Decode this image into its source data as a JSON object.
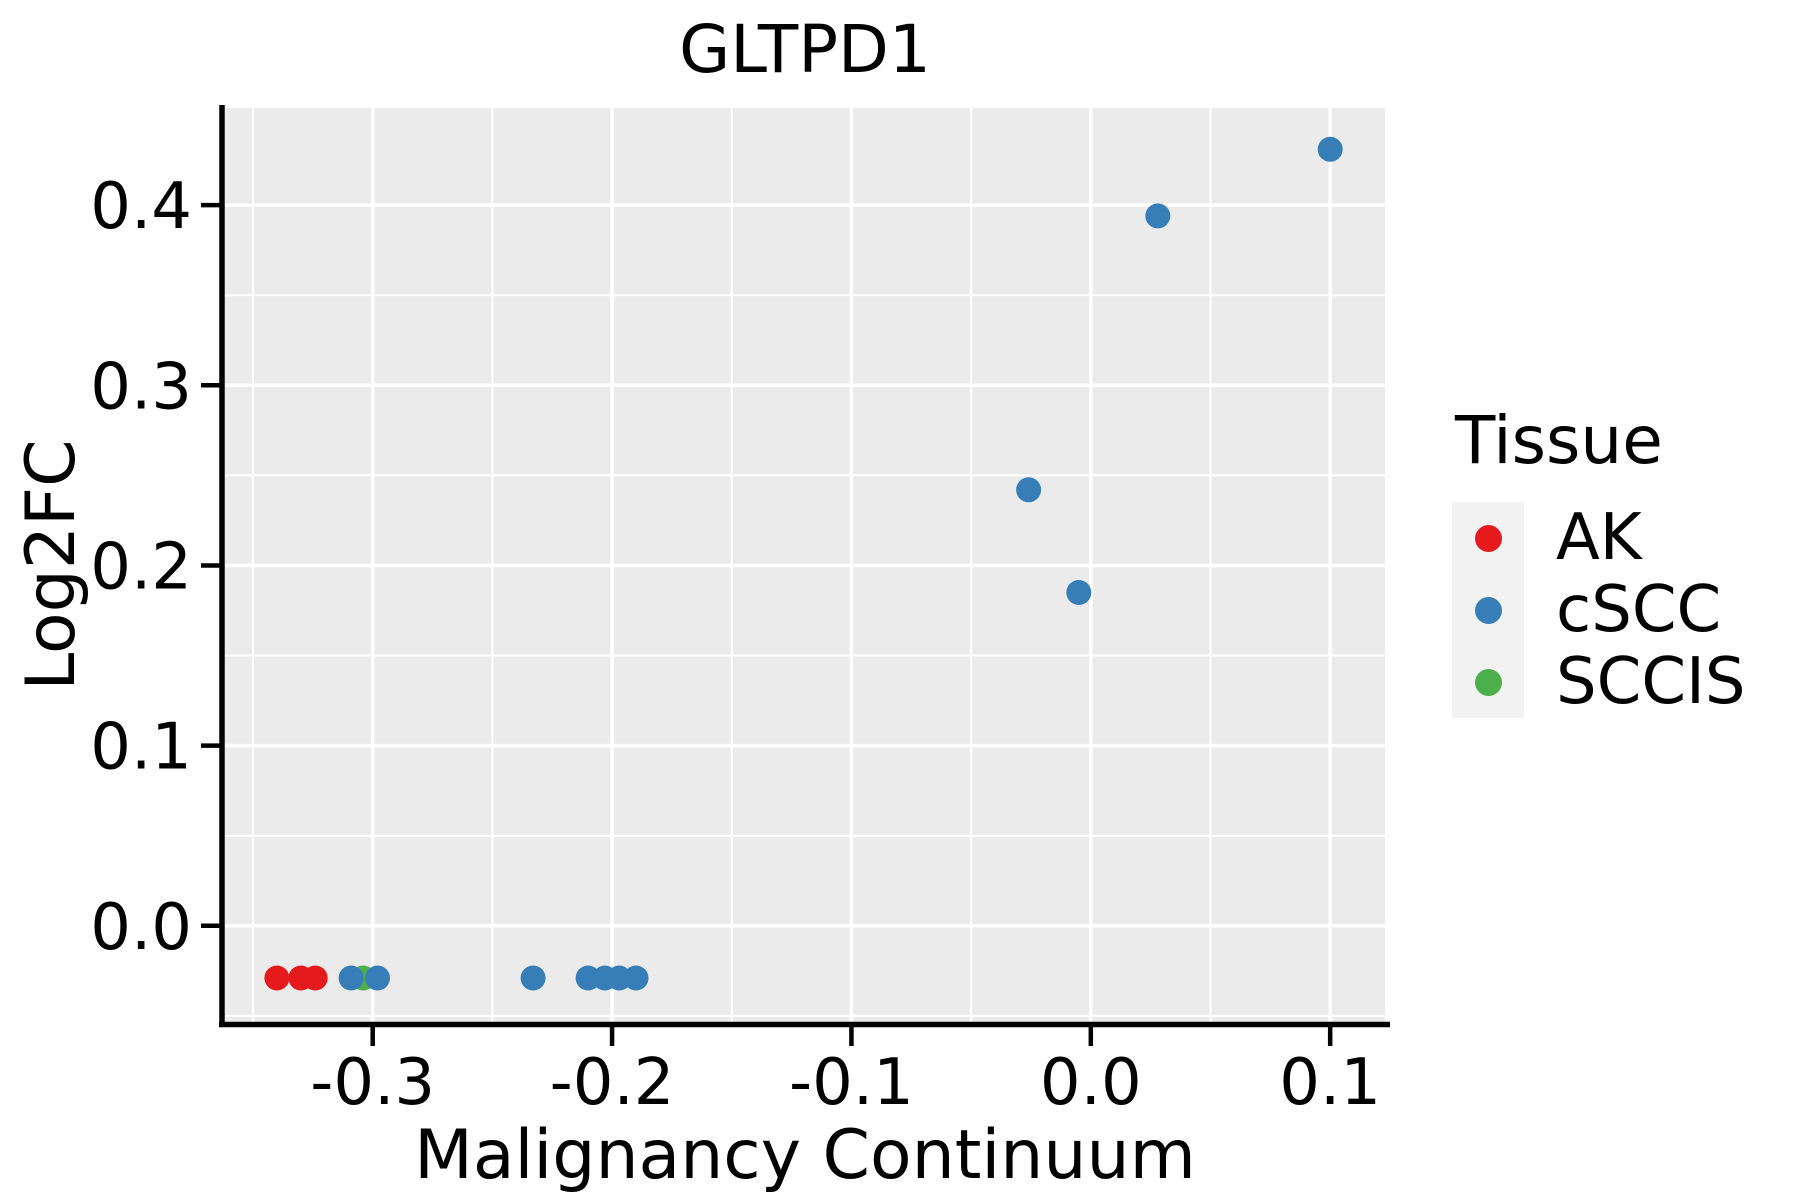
{
  "chart_data": {
    "type": "scatter",
    "title": "GLTPD1",
    "xlabel": "Malignancy Continuum",
    "ylabel": "Log2FC",
    "xlim": [
      -0.3617,
      0.1229
    ],
    "ylim": [
      -0.0534,
      0.4539
    ],
    "x_ticks": {
      "values": [
        -0.3,
        -0.2,
        -0.1,
        0.0,
        0.1
      ],
      "labels": [
        "-0.3",
        "-0.2",
        "-0.1",
        "0.0",
        "0.1"
      ],
      "minor": [
        -0.35,
        -0.25,
        -0.15,
        -0.05,
        0.05
      ]
    },
    "y_ticks": {
      "values": [
        0.0,
        0.1,
        0.2,
        0.3,
        0.4
      ],
      "labels": [
        "0.0",
        "0.1",
        "0.2",
        "0.3",
        "0.4"
      ],
      "minor": [
        -0.05,
        0.05,
        0.15,
        0.25,
        0.35
      ]
    },
    "panel_background": "#EBEBEB",
    "grid_color": "#FFFFFF",
    "axis_color": "#000000",
    "point_radius": 12.5,
    "series": [
      {
        "name": "AK",
        "color": "#E41A1C",
        "points": [
          [
            -0.34,
            -0.029
          ],
          [
            -0.33,
            -0.029
          ],
          [
            -0.324,
            -0.029
          ]
        ]
      },
      {
        "name": "SCCIS",
        "color": "#4DAF4A",
        "points": [
          [
            -0.304,
            -0.029
          ]
        ]
      },
      {
        "name": "cSCC",
        "color": "#377EB8",
        "points": [
          [
            -0.309,
            -0.029
          ],
          [
            -0.298,
            -0.029
          ],
          [
            -0.233,
            -0.029
          ],
          [
            -0.21,
            -0.029
          ],
          [
            -0.203,
            -0.029
          ],
          [
            -0.197,
            -0.029
          ],
          [
            -0.19,
            -0.029
          ],
          [
            -0.026,
            0.242
          ],
          [
            -0.005,
            0.185
          ],
          [
            0.028,
            0.394
          ],
          [
            0.1,
            0.431
          ]
        ]
      }
    ],
    "legend_position": "right",
    "grid": "on"
  },
  "legend": {
    "title": "Tissue",
    "key_background": "#F2F2F2",
    "entries": [
      {
        "label": "AK",
        "color": "#E41A1C"
      },
      {
        "label": "cSCC",
        "color": "#377EB8"
      },
      {
        "label": "SCCIS",
        "color": "#4DAF4A"
      }
    ]
  }
}
